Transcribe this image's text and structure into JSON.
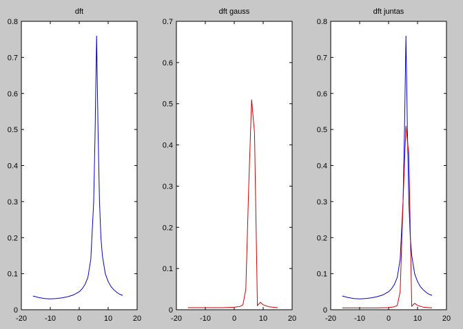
{
  "chart_data": [
    {
      "type": "line",
      "title": "dft",
      "xlabel": "",
      "ylabel": "",
      "xlim": [
        -20,
        20
      ],
      "ylim": [
        0,
        0.8
      ],
      "xticks": [
        -20,
        -10,
        0,
        10,
        20
      ],
      "yticks": [
        0,
        0.1,
        0.2,
        0.3,
        0.4,
        0.5,
        0.6,
        0.7,
        0.8
      ],
      "xtick_labels": [
        "-20",
        "-10",
        "0",
        "10",
        "20"
      ],
      "ytick_labels": [
        "0",
        "0.1",
        "0.2",
        "0.3",
        "0.4",
        "0.5",
        "0.6",
        "0.7",
        "0.8"
      ],
      "grid": false,
      "series": [
        {
          "color": "#0000cc",
          "x": [
            -16,
            -14,
            -12,
            -10,
            -8,
            -6,
            -4,
            -2,
            0,
            1,
            2,
            3,
            4,
            5,
            5.5,
            6,
            6.5,
            7,
            7.5,
            8,
            9,
            10,
            11,
            12,
            13,
            14,
            15
          ],
          "y": [
            0.038,
            0.034,
            0.031,
            0.03,
            0.031,
            0.033,
            0.036,
            0.041,
            0.05,
            0.058,
            0.07,
            0.09,
            0.14,
            0.3,
            0.5,
            0.76,
            0.5,
            0.3,
            0.2,
            0.15,
            0.1,
            0.078,
            0.064,
            0.055,
            0.048,
            0.043,
            0.04
          ]
        }
      ]
    },
    {
      "type": "line",
      "title": "dft gauss",
      "xlabel": "",
      "ylabel": "",
      "xlim": [
        -20,
        20
      ],
      "ylim": [
        0,
        0.7
      ],
      "xticks": [
        -20,
        -10,
        0,
        10,
        20
      ],
      "yticks": [
        0,
        0.1,
        0.2,
        0.3,
        0.4,
        0.5,
        0.6,
        0.7
      ],
      "xtick_labels": [
        "-20",
        "-10",
        "0",
        "10",
        "20"
      ],
      "ytick_labels": [
        "0",
        "0.1",
        "0.2",
        "0.3",
        "0.4",
        "0.5",
        "0.6",
        "0.7"
      ],
      "grid": false,
      "series": [
        {
          "color": "#cc0000",
          "x": [
            -16,
            -12,
            -8,
            -4,
            0,
            2,
            3,
            4,
            5,
            6,
            7,
            8,
            9,
            10,
            12,
            15
          ],
          "y": [
            0.005,
            0.005,
            0.005,
            0.005,
            0.006,
            0.008,
            0.012,
            0.05,
            0.3,
            0.51,
            0.43,
            0.01,
            0.018,
            0.012,
            0.007,
            0.005
          ]
        }
      ]
    },
    {
      "type": "line",
      "title": "dft juntas",
      "xlabel": "",
      "ylabel": "",
      "xlim": [
        -20,
        20
      ],
      "ylim": [
        0,
        0.8
      ],
      "xticks": [
        -20,
        -10,
        0,
        10,
        20
      ],
      "yticks": [
        0,
        0.1,
        0.2,
        0.3,
        0.4,
        0.5,
        0.6,
        0.7,
        0.8
      ],
      "xtick_labels": [
        "-20",
        "-10",
        "0",
        "10",
        "20"
      ],
      "ytick_labels": [
        "0",
        "0.1",
        "0.2",
        "0.3",
        "0.4",
        "0.5",
        "0.6",
        "0.7",
        "0.8"
      ],
      "grid": false,
      "series": [
        {
          "color": "#0000cc",
          "x": [
            -16,
            -14,
            -12,
            -10,
            -8,
            -6,
            -4,
            -2,
            0,
            1,
            2,
            3,
            4,
            5,
            5.5,
            6,
            6.5,
            7,
            7.5,
            8,
            9,
            10,
            11,
            12,
            13,
            14,
            15
          ],
          "y": [
            0.038,
            0.034,
            0.031,
            0.03,
            0.031,
            0.033,
            0.036,
            0.041,
            0.05,
            0.058,
            0.07,
            0.09,
            0.14,
            0.3,
            0.5,
            0.76,
            0.5,
            0.3,
            0.2,
            0.15,
            0.1,
            0.078,
            0.064,
            0.055,
            0.048,
            0.043,
            0.04
          ]
        },
        {
          "color": "#cc0000",
          "x": [
            -16,
            -12,
            -8,
            -4,
            0,
            2,
            3,
            4,
            5,
            6,
            7,
            8,
            9,
            10,
            12,
            15
          ],
          "y": [
            0.005,
            0.005,
            0.005,
            0.005,
            0.006,
            0.008,
            0.012,
            0.05,
            0.3,
            0.51,
            0.43,
            0.01,
            0.018,
            0.012,
            0.007,
            0.005
          ]
        }
      ]
    }
  ]
}
